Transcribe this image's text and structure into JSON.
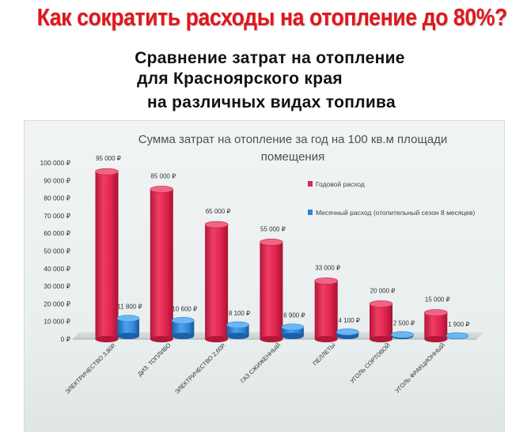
{
  "page": {
    "headline": "Как сократить расходы на отопление до 80%?",
    "subtitle_line1": "Сравнение затрат на отопление",
    "subtitle_line2": "для Красноярского края",
    "subtitle_line3": "на различных видах топлива"
  },
  "colors": {
    "annual": "#e0274f",
    "monthly": "#2f86d6",
    "headline": "#e2161b"
  },
  "chart_data": {
    "type": "bar",
    "title": "Сумма затрат на отопление за год на 100 кв.м площади помещения",
    "title_line1": "Сумма затрат на отопление за год на 100 кв.м площади",
    "title_line2": "помещения",
    "categories": [
      "ЭЛЕКТРИЧЕСТВО 3,80Р.",
      "ДИЗ. ТОПЛИВО",
      "ЭЛЕКТРИЧЕСТВО 2,60Р.",
      "ГАЗ СЖИЖЕННЫЙ",
      "ПЕЛЛЕТЫ",
      "УГОЛЬ СОРТОВОЙ",
      "УГОЛЬ ФРАКЦИОННЫЙ"
    ],
    "series": [
      {
        "name": "Годовой расход",
        "values": [
          95000,
          85000,
          65000,
          55000,
          33000,
          20000,
          15000
        ],
        "labels": [
          "95 000 ₽",
          "85 000 ₽",
          "65 000 ₽",
          "55 000 ₽",
          "33 000 ₽",
          "20 000 ₽",
          "15 000 ₽"
        ]
      },
      {
        "name": "Месячный расход (отопительный сезон 8 месяцев)",
        "values": [
          11800,
          10600,
          8100,
          6900,
          4100,
          2500,
          1900
        ],
        "labels": [
          "11 800 ₽",
          "10 600 ₽",
          "8 100 ₽",
          "6 900 ₽",
          "4 100 ₽",
          "2 500 ₽",
          "1 900 ₽"
        ]
      }
    ],
    "ylim": [
      0,
      100000
    ],
    "yticks": [
      "0 ₽",
      "10 000 ₽",
      "20 000 ₽",
      "30 000 ₽",
      "40 000 ₽",
      "50 000 ₽",
      "60 000 ₽",
      "70 000 ₽",
      "80 000 ₽",
      "90 000 ₽",
      "100 000 ₽"
    ],
    "legend_position": "right",
    "grid": false
  }
}
